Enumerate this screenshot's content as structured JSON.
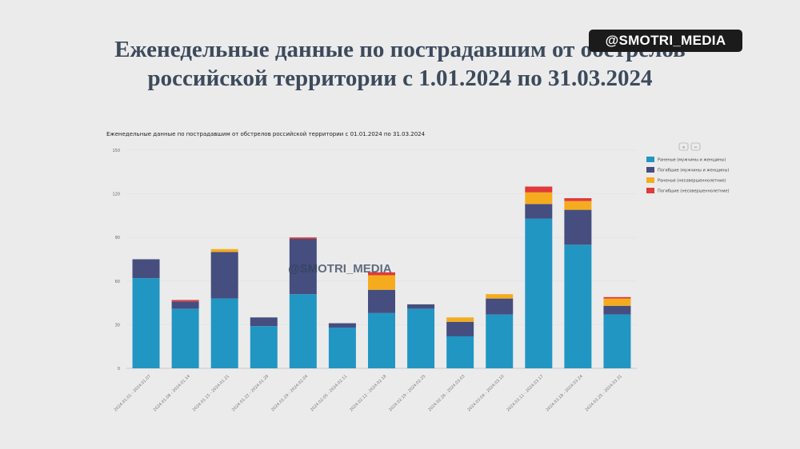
{
  "headline": {
    "line1": "Еженедельные данные по пострадавшим от обстрелов",
    "line2": "российской территории с 1.01.2024 по 31.03.2024"
  },
  "watermark": {
    "top": "@SMOTRI_MEDIA",
    "mid": "@SMOTRI_MEDIA"
  },
  "controls": [
    "⊕",
    "⇔"
  ],
  "colors": {
    "wounded_adults": "#2196c3",
    "killed_adults": "#454e7e",
    "wounded_minors": "#f4ac1e",
    "killed_minors": "#e03a3a",
    "grid": "#e3e3e3"
  },
  "chart_data": {
    "type": "bar",
    "stacked": true,
    "title": "Еженедельные данные по пострадавшим от обстрелов российской территории с 01.01.2024 по 31.03.2024",
    "categories": [
      "2024.01.01 - 2024.01.07",
      "2024.01.08 - 2024.01.14",
      "2024.01.15 - 2024.01.21",
      "2024.01.22 - 2024.01.28",
      "2024.01.29 - 2024.02.04",
      "2024.02.05 - 2024.02.11",
      "2024.02.12 - 2024.02.18",
      "2024.02.19 - 2024.02.25",
      "2024.02.26 - 2024.03.03",
      "2024.03.04 - 2024.03.10",
      "2024.03.11 - 2024.03.17",
      "2024.03.18 - 2024.03.24",
      "2024.03.25 - 2024.03.31"
    ],
    "series": [
      {
        "name": "Раненые (мужчины и женщины)",
        "color_key": "wounded_adults",
        "values": [
          62,
          41,
          48,
          29,
          51,
          28,
          38,
          41,
          22,
          37,
          103,
          85,
          37
        ]
      },
      {
        "name": "Погибшие (мужчины и женщины)",
        "color_key": "killed_adults",
        "values": [
          13,
          5,
          32,
          6,
          38,
          3,
          16,
          3,
          10,
          11,
          10,
          24,
          6
        ]
      },
      {
        "name": "Раненые (несовершеннолетние)",
        "color_key": "wounded_minors",
        "values": [
          0,
          0,
          2,
          0,
          0,
          0,
          10,
          0,
          3,
          3,
          8,
          6,
          5
        ]
      },
      {
        "name": "Погибшие (несовершеннолетние)",
        "color_key": "killed_minors",
        "values": [
          0,
          1,
          0,
          0,
          1,
          0,
          2,
          0,
          0,
          0,
          4,
          2,
          1
        ]
      }
    ],
    "yticks": [
      0,
      30,
      60,
      90,
      120,
      150
    ],
    "ylim": [
      0,
      150
    ],
    "xlabel": "",
    "ylabel": "",
    "legend_position": "top-right"
  }
}
